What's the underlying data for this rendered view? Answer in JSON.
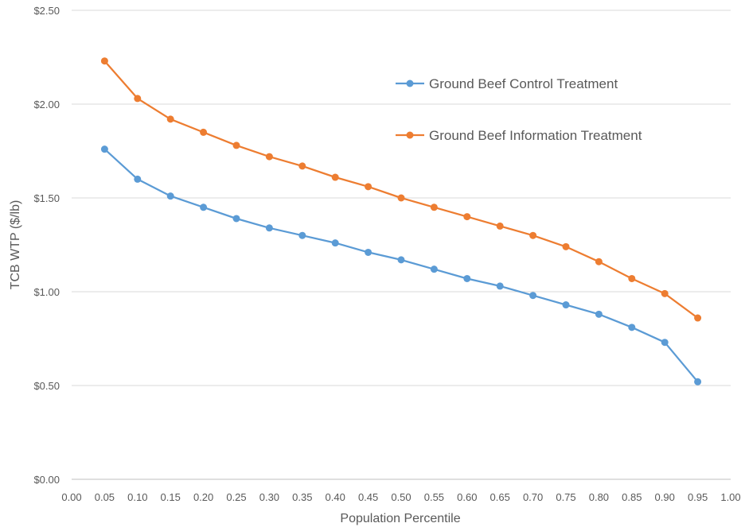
{
  "chart_data": {
    "type": "line",
    "title": "",
    "xlabel": "Population Percentile",
    "ylabel": "TCB WTP ($/lb)",
    "xlim": [
      0,
      1
    ],
    "ylim": [
      0,
      2.5
    ],
    "x_ticks": [
      "0.00",
      "0.05",
      "0.10",
      "0.15",
      "0.20",
      "0.25",
      "0.30",
      "0.35",
      "0.40",
      "0.45",
      "0.50",
      "0.55",
      "0.60",
      "0.65",
      "0.70",
      "0.75",
      "0.80",
      "0.85",
      "0.90",
      "0.95",
      "1.00"
    ],
    "y_ticks": [
      "$0.00",
      "$0.50",
      "$1.00",
      "$1.50",
      "$2.00",
      "$2.50"
    ],
    "grid": "horizontal",
    "legend_position": "top-right",
    "x": [
      0.05,
      0.1,
      0.15,
      0.2,
      0.25,
      0.3,
      0.35,
      0.4,
      0.45,
      0.5,
      0.55,
      0.6,
      0.65,
      0.7,
      0.75,
      0.8,
      0.85,
      0.9,
      0.95
    ],
    "series": [
      {
        "name": "Ground Beef Control Treatment",
        "color": "#5b9bd5",
        "values": [
          1.76,
          1.6,
          1.51,
          1.45,
          1.39,
          1.34,
          1.3,
          1.26,
          1.21,
          1.17,
          1.12,
          1.07,
          1.03,
          0.98,
          0.93,
          0.88,
          0.81,
          0.73,
          0.52
        ]
      },
      {
        "name": "Ground Beef Information Treatment",
        "color": "#ed7d31",
        "values": [
          2.23,
          2.03,
          1.92,
          1.85,
          1.78,
          1.72,
          1.67,
          1.61,
          1.56,
          1.5,
          1.45,
          1.4,
          1.35,
          1.3,
          1.24,
          1.16,
          1.07,
          0.99,
          0.86
        ]
      }
    ]
  }
}
